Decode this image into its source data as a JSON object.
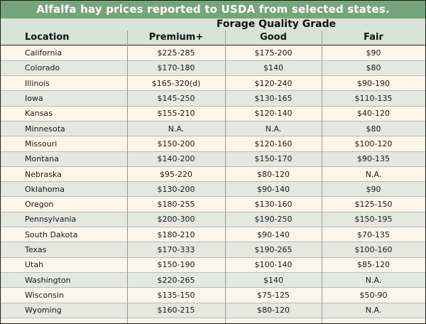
{
  "title": "Alfalfa hay prices reported to USDA from selected states.",
  "group_header": "Forage Quality Grade",
  "columns": {
    "location": "Location",
    "premium": "Premium+",
    "good": "Good",
    "fair": "Fair"
  },
  "rows": [
    {
      "location": "California",
      "premium": "$225-285",
      "good": "$175-200",
      "fair": "$90"
    },
    {
      "location": "Colorado",
      "premium": "$170-180",
      "good": "$140",
      "fair": "$80"
    },
    {
      "location": "Illinois",
      "premium": "$165-320(d)",
      "good": "$120-240",
      "fair": "$90-190"
    },
    {
      "location": "Iowa",
      "premium": "$145-250",
      "good": "$130-165",
      "fair": "$110-135"
    },
    {
      "location": "Kansas",
      "premium": "$155-210",
      "good": "$120-140",
      "fair": "$40-120"
    },
    {
      "location": "Minnesota",
      "premium": "N.A.",
      "good": "N.A.",
      "fair": "$80"
    },
    {
      "location": "Missouri",
      "premium": "$150-200",
      "good": "$120-160",
      "fair": "$100-120"
    },
    {
      "location": "Montana",
      "premium": "$140-200",
      "good": "$150-170",
      "fair": "$90-135"
    },
    {
      "location": "Nebraska",
      "premium": "$95-220",
      "good": "$80-120",
      "fair": "N.A."
    },
    {
      "location": "Oklahoma",
      "premium": "$130-200",
      "good": "$90-140",
      "fair": "$90"
    },
    {
      "location": "Oregon",
      "premium": "$180-255",
      "good": "$130-160",
      "fair": "$125-150"
    },
    {
      "location": "Pennsylvania",
      "premium": "$200-300",
      "good": "$190-250",
      "fair": "$150-195"
    },
    {
      "location": "South Dakota",
      "premium": "$180-210",
      "good": "$90-140",
      "fair": "$70-135"
    },
    {
      "location": "Texas",
      "premium": "$170-333",
      "good": "$190-265",
      "fair": "$100-160"
    },
    {
      "location": "Utah",
      "premium": "$150-190",
      "good": "$100-140",
      "fair": "$85-120"
    },
    {
      "location": "Washington",
      "premium": "$220-265",
      "good": "$140",
      "fair": "N.A."
    },
    {
      "location": "Wisconsin",
      "premium": "$135-150",
      "good": "$75-125",
      "fair": "$50-90"
    },
    {
      "location": "Wyoming",
      "premium": "$160-215",
      "good": "$80-120",
      "fair": "N.A."
    }
  ]
}
